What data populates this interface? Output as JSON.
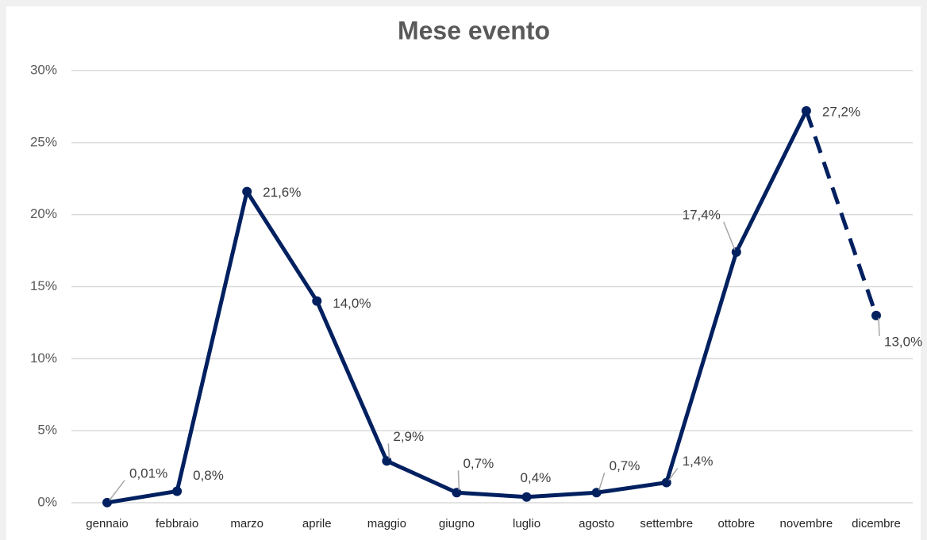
{
  "chart_data": {
    "type": "line",
    "title": "Mese evento",
    "categories": [
      "gennaio",
      "febbraio",
      "marzo",
      "aprile",
      "maggio",
      "giugno",
      "luglio",
      "agosto",
      "settembre",
      "ottobre",
      "novembre",
      "dicembre"
    ],
    "series": [
      {
        "color": "#002060",
        "values": [
          0.01,
          0.8,
          21.6,
          14.0,
          2.9,
          0.7,
          0.4,
          0.7,
          1.4,
          17.4,
          27.2,
          13.0
        ],
        "value_labels": [
          "0,01%",
          "0,8%",
          "21,6%",
          "14,0%",
          "2,9%",
          "0,7%",
          "0,4%",
          "0,7%",
          "1,4%",
          "17,4%",
          "27,2%",
          "13,0%"
        ],
        "dashed_from_index": 10
      }
    ],
    "ylim": [
      0,
      30
    ],
    "yticks": [
      {
        "value": 0,
        "label": "0%"
      },
      {
        "value": 5,
        "label": "5%"
      },
      {
        "value": 10,
        "label": "10%"
      },
      {
        "value": 15,
        "label": "15%"
      },
      {
        "value": 20,
        "label": "20%"
      },
      {
        "value": 25,
        "label": "25%"
      },
      {
        "value": 30,
        "label": "30%"
      }
    ],
    "grid": true
  }
}
